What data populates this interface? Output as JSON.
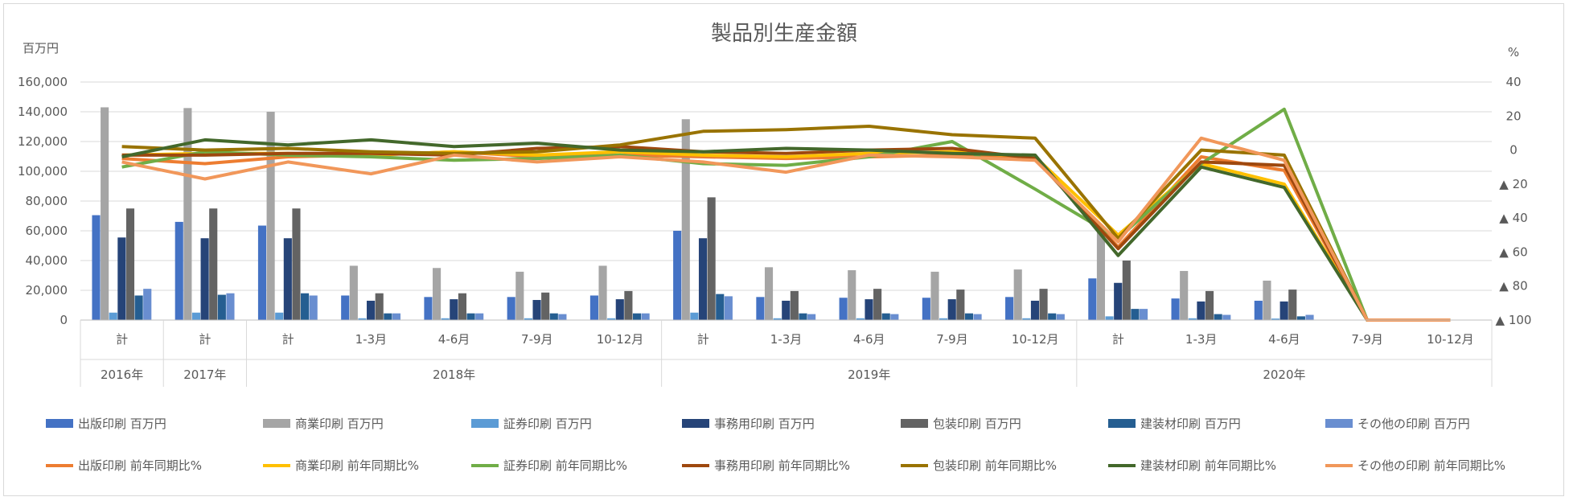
{
  "chart_data": {
    "type": "bar",
    "title": "製品別生産金額",
    "y_left_unit": "百万円",
    "y_right_unit": "%",
    "ylim_left": [
      0,
      160000
    ],
    "ylim_right": [
      40,
      -100
    ],
    "y_left_ticks": [
      "0",
      "20,000",
      "40,000",
      "60,000",
      "80,000",
      "100,000",
      "120,000",
      "140,000",
      "160,000"
    ],
    "y_right_ticks": [
      {
        "value": 40,
        "label": "40"
      },
      {
        "value": 20,
        "label": "20"
      },
      {
        "value": 0,
        "label": "0"
      },
      {
        "value": -20,
        "label": "▲ 20"
      },
      {
        "value": -40,
        "label": "▲ 40"
      },
      {
        "value": -60,
        "label": "▲ 60"
      },
      {
        "value": -80,
        "label": "▲ 80"
      },
      {
        "value": -100,
        "label": "▲ 100"
      }
    ],
    "categories": [
      "計",
      "計",
      "計",
      "1-3月",
      "4-6月",
      "7-9月",
      "10-12月",
      "計",
      "1-3月",
      "4-6月",
      "7-9月",
      "10-12月",
      "計",
      "1-3月",
      "4-6月",
      "7-9月",
      "10-12月"
    ],
    "year_groups": [
      {
        "label": "2016年",
        "count": 1
      },
      {
        "label": "2017年",
        "count": 1
      },
      {
        "label": "2018年",
        "count": 5
      },
      {
        "label": "2019年",
        "count": 5
      },
      {
        "label": "2020年",
        "count": 5
      }
    ],
    "bar_series": [
      {
        "name": "出版印刷 百万円",
        "color": "#4472c4",
        "values": [
          70500,
          66000,
          63500,
          16500,
          15500,
          15500,
          16500,
          60000,
          15500,
          15000,
          15000,
          15500,
          28000,
          14500,
          13000,
          0,
          0
        ]
      },
      {
        "name": "商業印刷 百万円",
        "color": "#a5a5a5",
        "values": [
          143000,
          142500,
          140000,
          36500,
          35000,
          32500,
          36500,
          135000,
          35500,
          33500,
          32500,
          34000,
          60000,
          33000,
          26500,
          0,
          0
        ]
      },
      {
        "name": "証券印刷 百万円",
        "color": "#5b9bd5",
        "values": [
          5000,
          5000,
          5000,
          1200,
          1200,
          1200,
          1200,
          5000,
          1200,
          1200,
          1200,
          1200,
          2500,
          1200,
          1000,
          0,
          0
        ]
      },
      {
        "name": "事務用印刷 百万円",
        "color": "#264478",
        "values": [
          55500,
          55000,
          55000,
          13000,
          14000,
          13500,
          14000,
          55000,
          13000,
          14000,
          14000,
          13000,
          25000,
          12500,
          12500,
          0,
          0
        ]
      },
      {
        "name": "包装印刷 百万円",
        "color": "#636363",
        "values": [
          75000,
          75000,
          75000,
          18000,
          18000,
          18500,
          19500,
          82500,
          19500,
          21000,
          20500,
          21000,
          40000,
          19500,
          20500,
          0,
          0
        ]
      },
      {
        "name": "建装材印刷 百万円",
        "color": "#255e91",
        "values": [
          16500,
          17000,
          18000,
          4500,
          4500,
          4500,
          4500,
          17500,
          4500,
          4500,
          4500,
          4500,
          7500,
          4000,
          2500,
          0,
          0
        ]
      },
      {
        "name": "その他の印刷 百万円",
        "color": "#698ed0",
        "values": [
          21000,
          18000,
          16500,
          4500,
          4500,
          4000,
          4500,
          16000,
          4000,
          4000,
          4000,
          4000,
          7500,
          3500,
          3500,
          0,
          0
        ]
      }
    ],
    "line_series": [
      {
        "name": "出版印刷 前年同期比%",
        "color": "#ed7d31",
        "values": [
          -5,
          -8,
          -4,
          -3,
          -1,
          -4,
          -3,
          -4,
          -5,
          -4,
          -3,
          -5,
          -57,
          -4,
          -12,
          -100,
          -100
        ]
      },
      {
        "name": "商業印刷 前年同期比%",
        "color": "#ffc000",
        "values": [
          -3,
          -2,
          -2,
          -3,
          -1,
          -3,
          -1,
          -3,
          -4,
          -2,
          -1,
          -4,
          -50,
          -8,
          -20,
          -100,
          -100
        ]
      },
      {
        "name": "証券印刷 前年同期比%",
        "color": "#70ad47",
        "values": [
          -10,
          -1,
          -3,
          -4,
          -6,
          -5,
          -3,
          -8,
          -9,
          -4,
          5,
          -23,
          -52,
          -8,
          24,
          -100,
          -100
        ]
      },
      {
        "name": "事務用印刷 前年同期比%",
        "color": "#9e480e",
        "values": [
          -3,
          -3,
          -2,
          -2,
          -3,
          1,
          2,
          -1,
          -2,
          0,
          1,
          -5,
          -58,
          -7,
          -9,
          -100,
          -100
        ]
      },
      {
        "name": "包装印刷 前年同期比%",
        "color": "#997300",
        "values": [
          2,
          0,
          1,
          -1,
          -2,
          -1,
          3,
          11,
          12,
          14,
          9,
          7,
          -52,
          0,
          -3,
          -100,
          -100
        ]
      },
      {
        "name": "建装材印刷 前年同期比%",
        "color": "#43682b",
        "values": [
          -4,
          6,
          3,
          6,
          2,
          4,
          0,
          -1,
          1,
          0,
          -2,
          -3,
          -62,
          -10,
          -22,
          -100,
          -100
        ]
      },
      {
        "name": "その他の印刷 前年同期比%",
        "color": "#f1975a",
        "values": [
          -7,
          -17,
          -7,
          -14,
          -3,
          -7,
          -4,
          -7,
          -13,
          -3,
          -4,
          -6,
          -54,
          7,
          -6,
          -100,
          -100
        ]
      }
    ]
  }
}
